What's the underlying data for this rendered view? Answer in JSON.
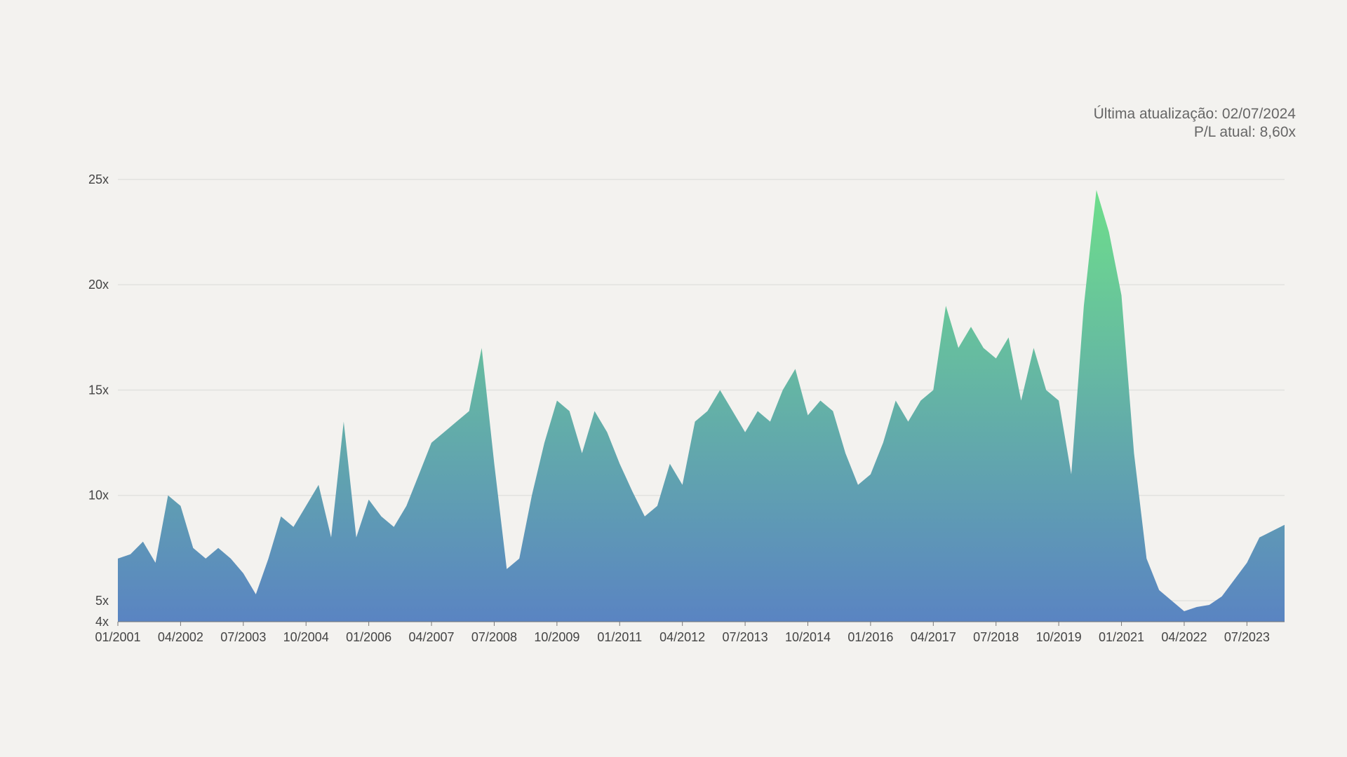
{
  "chart_data": {
    "type": "area",
    "annotations": [
      "Última atualização: 02/07/2024",
      "P/L atual: 8,60x"
    ],
    "x": [
      "01/2001",
      "04/2001",
      "07/2001",
      "10/2001",
      "01/2002",
      "04/2002",
      "07/2002",
      "10/2002",
      "01/2003",
      "04/2003",
      "07/2003",
      "10/2003",
      "01/2004",
      "04/2004",
      "07/2004",
      "10/2004",
      "01/2005",
      "04/2005",
      "07/2005",
      "10/2005",
      "01/2006",
      "04/2006",
      "07/2006",
      "10/2006",
      "01/2007",
      "04/2007",
      "07/2007",
      "10/2007",
      "01/2008",
      "04/2008",
      "07/2008",
      "10/2008",
      "01/2009",
      "04/2009",
      "07/2009",
      "10/2009",
      "01/2010",
      "04/2010",
      "07/2010",
      "10/2010",
      "01/2011",
      "04/2011",
      "07/2011",
      "10/2011",
      "01/2012",
      "04/2012",
      "07/2012",
      "10/2012",
      "01/2013",
      "04/2013",
      "07/2013",
      "10/2013",
      "01/2014",
      "04/2014",
      "07/2014",
      "10/2014",
      "01/2015",
      "04/2015",
      "07/2015",
      "10/2015",
      "01/2016",
      "04/2016",
      "07/2016",
      "10/2016",
      "01/2017",
      "04/2017",
      "07/2017",
      "10/2017",
      "01/2018",
      "04/2018",
      "07/2018",
      "10/2018",
      "01/2019",
      "04/2019",
      "07/2019",
      "10/2019",
      "01/2020",
      "04/2020",
      "07/2020",
      "10/2020",
      "01/2021",
      "04/2021",
      "07/2021",
      "10/2021",
      "01/2022",
      "04/2022",
      "07/2022",
      "10/2022",
      "01/2023",
      "04/2023",
      "07/2023",
      "10/2023",
      "01/2024",
      "04/2024"
    ],
    "values": [
      7.0,
      7.2,
      7.8,
      6.8,
      10.0,
      9.5,
      7.5,
      7.0,
      7.5,
      7.0,
      6.3,
      5.3,
      7.0,
      9.0,
      8.5,
      9.5,
      10.5,
      8.0,
      13.5,
      8.0,
      9.8,
      9.0,
      8.5,
      9.5,
      11.0,
      12.5,
      13.0,
      13.5,
      14.0,
      17.0,
      11.5,
      6.5,
      7.0,
      10.0,
      12.5,
      14.5,
      14.0,
      12.0,
      14.0,
      13.0,
      11.5,
      10.2,
      9.0,
      9.5,
      11.5,
      10.5,
      13.5,
      14.0,
      15.0,
      14.0,
      13.0,
      14.0,
      13.5,
      15.0,
      16.0,
      13.8,
      14.5,
      14.0,
      12.0,
      10.5,
      11.0,
      12.5,
      14.5,
      13.5,
      14.5,
      15.0,
      19.0,
      17.0,
      18.0,
      17.0,
      16.5,
      17.5,
      14.5,
      17.0,
      15.0,
      14.5,
      11.0,
      19.0,
      24.5,
      22.5,
      19.5,
      12.0,
      7.0,
      5.5,
      5.0,
      4.5,
      4.7,
      4.8,
      5.2,
      6.0,
      6.8,
      8.0,
      8.3,
      8.6
    ],
    "xticks": [
      "01/2001",
      "04/2002",
      "07/2003",
      "10/2004",
      "01/2006",
      "04/2007",
      "07/2008",
      "10/2009",
      "01/2011",
      "04/2012",
      "07/2013",
      "10/2014",
      "01/2016",
      "04/2017",
      "07/2018",
      "10/2019",
      "01/2021",
      "04/2022",
      "07/2023"
    ],
    "ylim": [
      4,
      25
    ],
    "yticks": [
      {
        "value": 4,
        "label": "4x"
      },
      {
        "value": 5,
        "label": "5x"
      },
      {
        "value": 10,
        "label": "10x"
      },
      {
        "value": 15,
        "label": "15x"
      },
      {
        "value": 20,
        "label": "20x"
      },
      {
        "value": 25,
        "label": "25x"
      }
    ],
    "grid": true,
    "color_top": "#6ee08a",
    "color_bottom": "#5a84c2"
  }
}
